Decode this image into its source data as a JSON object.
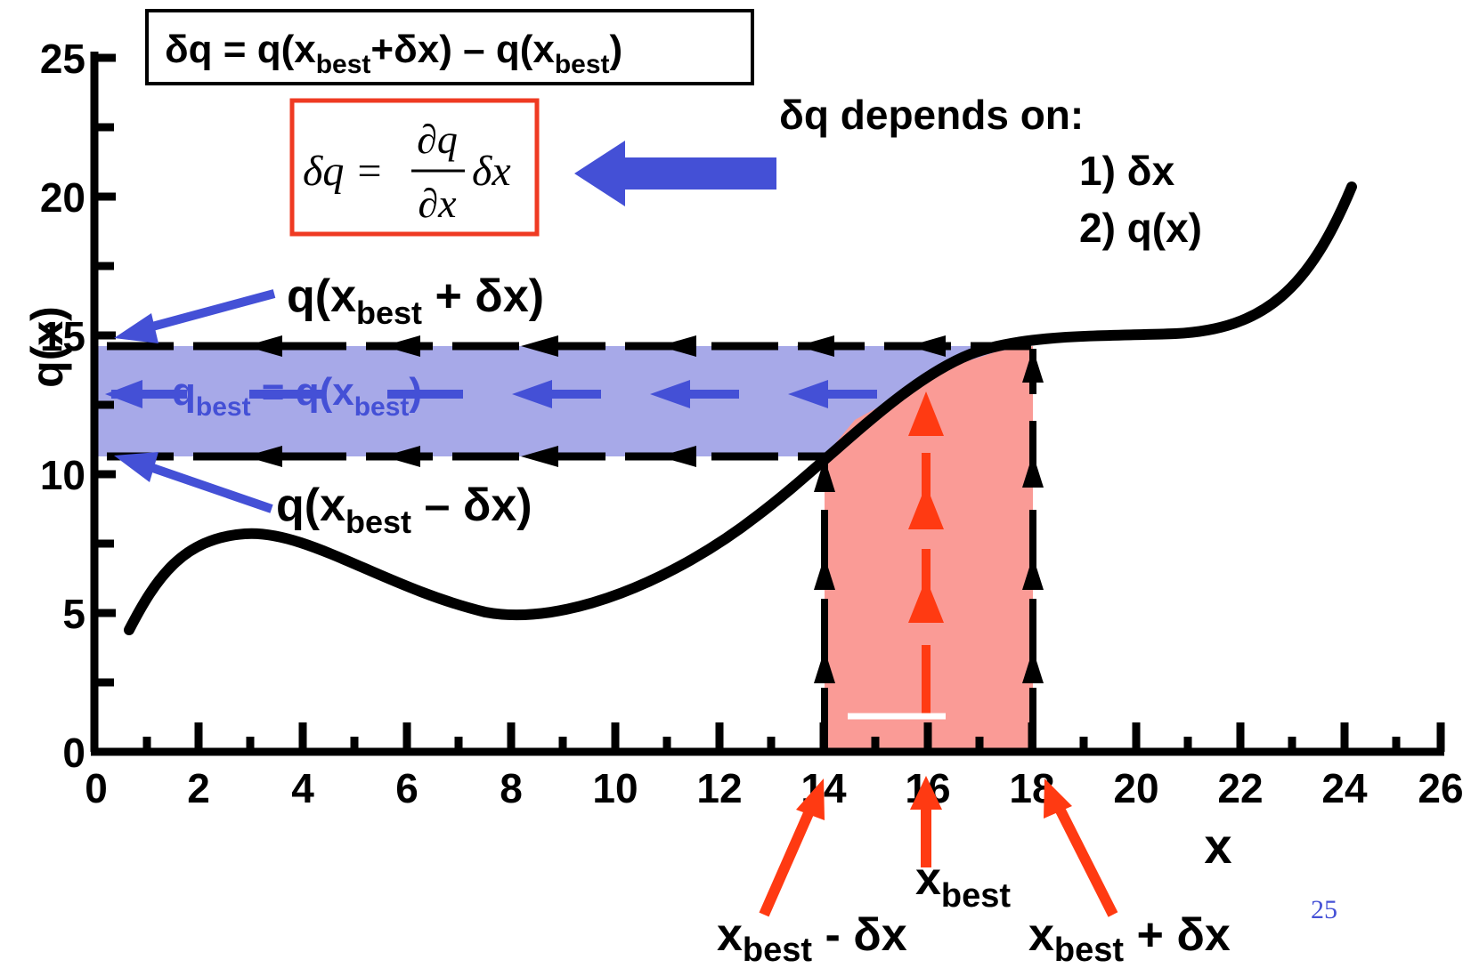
{
  "formula_box": {
    "delta_q": "δq = q(x",
    "sub_best_1": "best",
    "plus_dx": "+δx) – q(x",
    "sub_best_2": "best",
    "close": ")"
  },
  "derivative_box": {
    "lhs": "δq =",
    "numerator": "∂q",
    "denominator": "∂x",
    "rhs": "δx"
  },
  "depends": {
    "title": "δq depends on:",
    "item1": "1) δx",
    "item2": "2) q(x)"
  },
  "labels": {
    "q_plus_a": "q(x",
    "q_plus_sub": "best",
    "q_plus_b": " + δx)",
    "q_best_a": "q",
    "q_best_sub": "best",
    "q_best_b": " = q(x",
    "q_best_sub2": "best",
    "q_best_c": ")",
    "q_minus_a": "q(x",
    "q_minus_sub": "best",
    "q_minus_b": " – δx)",
    "xbest_a": "x",
    "xbest_sub": "best",
    "xminus_a": "x",
    "xminus_sub": "best",
    "xminus_b": " - δx",
    "xplus_a": "x",
    "xplus_sub": "best",
    "xplus_b": " + δx"
  },
  "axes": {
    "y_label": "q(x)",
    "x_label": "x",
    "y_ticks": [
      "0",
      "5",
      "10",
      "15",
      "20",
      "25"
    ],
    "x_ticks": [
      "0",
      "2",
      "4",
      "6",
      "8",
      "10",
      "12",
      "14",
      "16",
      "18",
      "20",
      "22",
      "24",
      "26"
    ]
  },
  "page_number": "25",
  "colors": {
    "blue_band": "#a7a9e8",
    "blue_arrow": "#4450d6",
    "red_band": "#fa9b96",
    "red_arrow": "#ff3a12",
    "red_box": "#ef3a22"
  }
}
